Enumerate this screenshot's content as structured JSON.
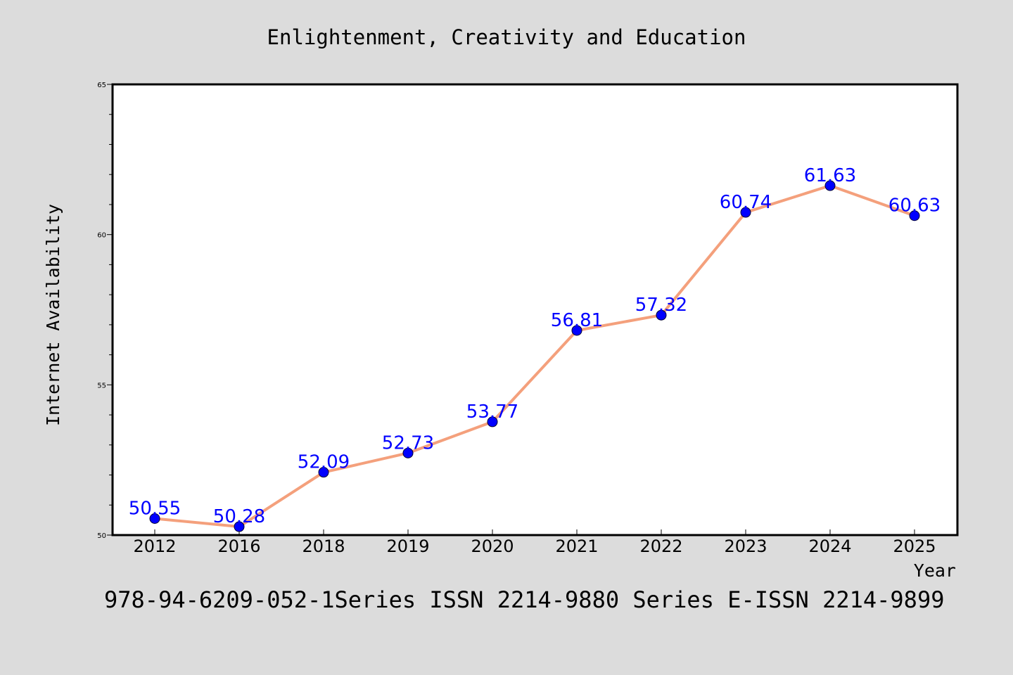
{
  "chart_data": {
    "type": "line",
    "title": "Enlightenment, Creativity and Education",
    "xlabel": "Year",
    "ylabel": "Internet Availability",
    "categories": [
      "2012",
      "2016",
      "2018",
      "2019",
      "2020",
      "2021",
      "2022",
      "2023",
      "2024",
      "2025"
    ],
    "values": [
      50.55,
      50.28,
      52.09,
      52.73,
      53.77,
      56.81,
      57.32,
      60.74,
      61.63,
      60.63
    ],
    "data_labels": [
      "50.55",
      "50.28",
      "52.09",
      "52.73",
      "53.77",
      "56.81",
      "57.32",
      "60.74",
      "61.63",
      "60.63"
    ],
    "ylim": [
      50,
      65
    ],
    "yticks": [
      "50",
      "55",
      "60",
      "65"
    ],
    "grid": false,
    "colors": {
      "line": "#f4a07c",
      "marker": "#0000ff",
      "label": "#0000ff",
      "background": "#dcdcdc",
      "plot_bg": "#ffffff"
    }
  },
  "footer_text": "978-94-6209-052-1Series ISSN 2214-9880 Series E-ISSN 2214-9899"
}
